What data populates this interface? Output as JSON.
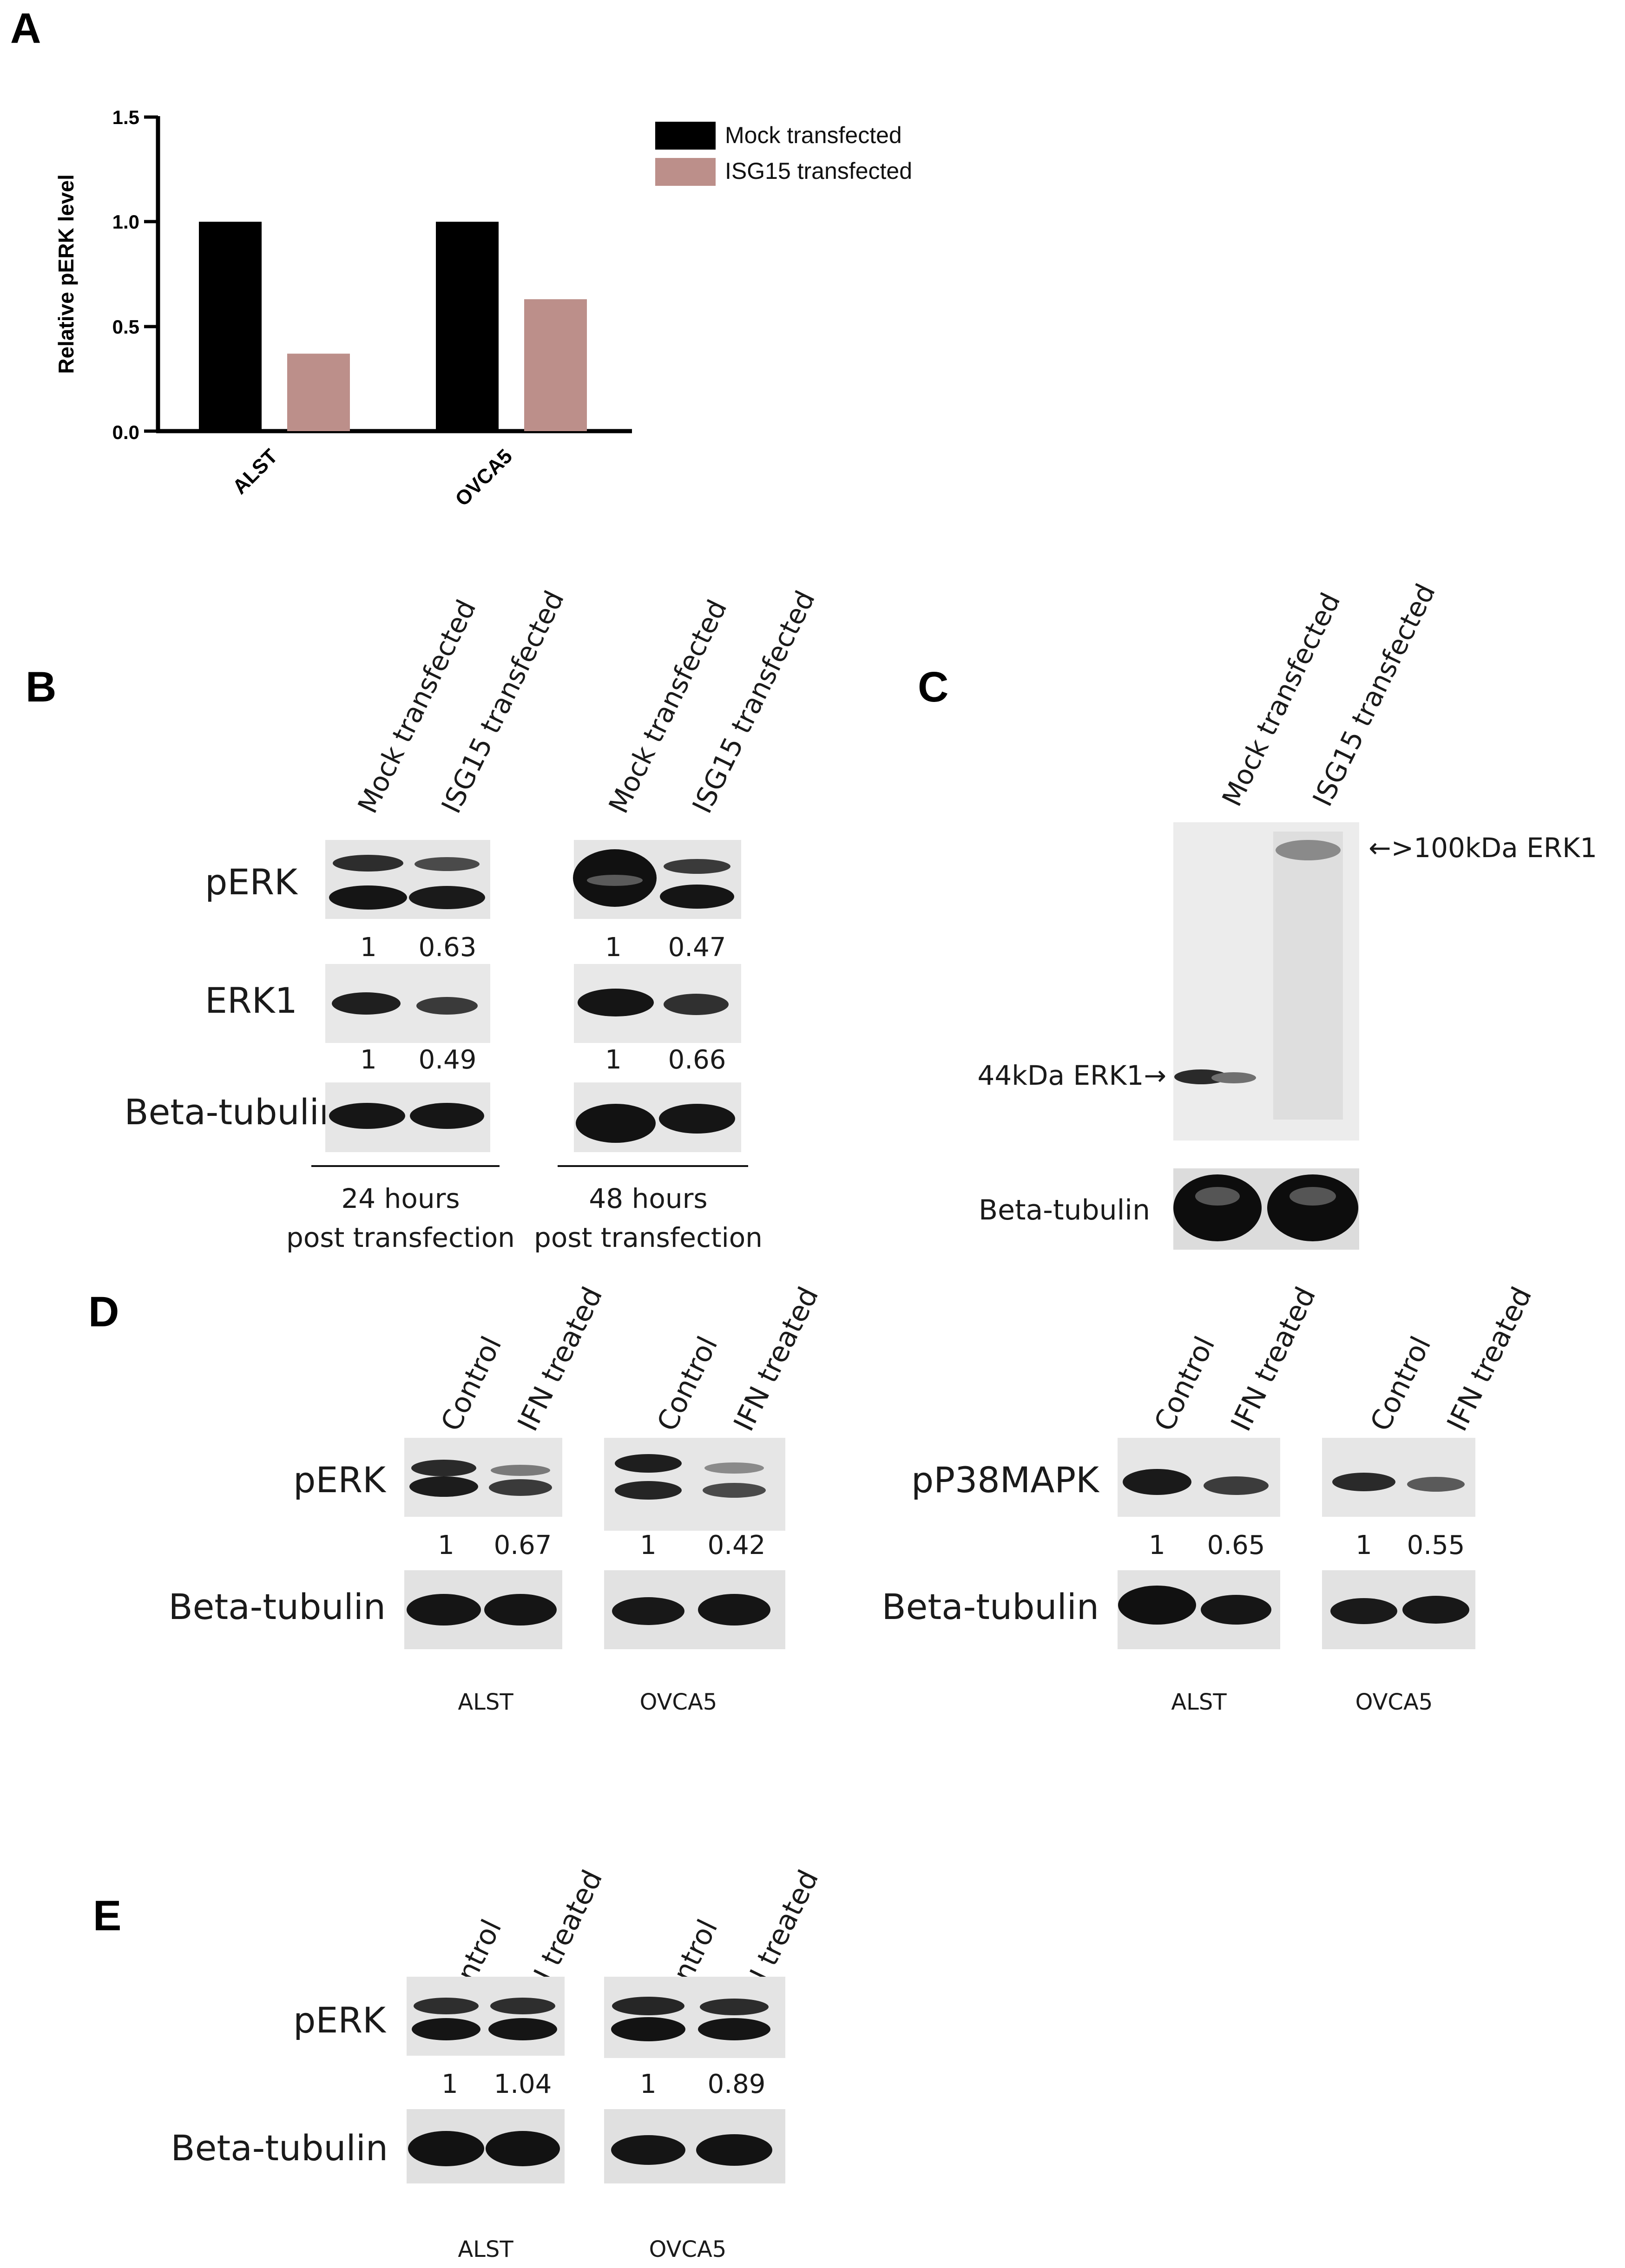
{
  "panel_letters": {
    "a": "A",
    "b": "B",
    "c": "C",
    "d": "D",
    "e": "E"
  },
  "chart_data": {
    "type": "bar",
    "categories": [
      "ALST",
      "OVCA5"
    ],
    "series": [
      {
        "name": "Mock transfected",
        "values": [
          1.0,
          1.0
        ],
        "color": "#000000"
      },
      {
        "name": "ISG15 transfected",
        "values": [
          0.37,
          0.63
        ],
        "color": "#bc8f8a"
      }
    ],
    "xlabel": "",
    "ylabel": "Relative pERK level",
    "ylim": [
      0,
      1.5
    ],
    "yticks": [
      "0.0",
      "0.5",
      "1.0",
      "1.5"
    ],
    "legend_position": "top-right",
    "grid": false
  },
  "lanes": {
    "mock": "Mock transfected",
    "isg15": "ISG15 transfected",
    "control": "Control",
    "ifn": "IFN treated"
  },
  "row_labels": {
    "perk": "pERK",
    "erk1": "ERK1",
    "tubulin": "Beta-tubulin",
    "pp38": "pP38MAPK"
  },
  "panel_b": {
    "quant_24h_perk": [
      "1",
      "0.63"
    ],
    "quant_24h_erk1": [
      "1",
      "0.49"
    ],
    "quant_48h_perk": [
      "1",
      "0.47"
    ],
    "quant_48h_erk1": [
      "1",
      "0.66"
    ],
    "time_24h": [
      "24 hours",
      "post transfection"
    ],
    "time_48h": [
      "48 hours",
      "post transfection"
    ]
  },
  "panel_c": {
    "marker_high": "←>100kDa ERK1",
    "marker_low": "44kDa ERK1→"
  },
  "panel_d": {
    "perk_alst": [
      "1",
      "0.67"
    ],
    "perk_ovca5": [
      "1",
      "0.42"
    ],
    "pp38_alst": [
      "1",
      "0.65"
    ],
    "pp38_ovca5": [
      "1",
      "0.55"
    ]
  },
  "panel_e": {
    "perk_alst": [
      "1",
      "1.04"
    ],
    "perk_ovca5": [
      "1",
      "0.89"
    ]
  },
  "cell_lines": {
    "alst": "ALST",
    "ovca5": "OVCA5"
  }
}
